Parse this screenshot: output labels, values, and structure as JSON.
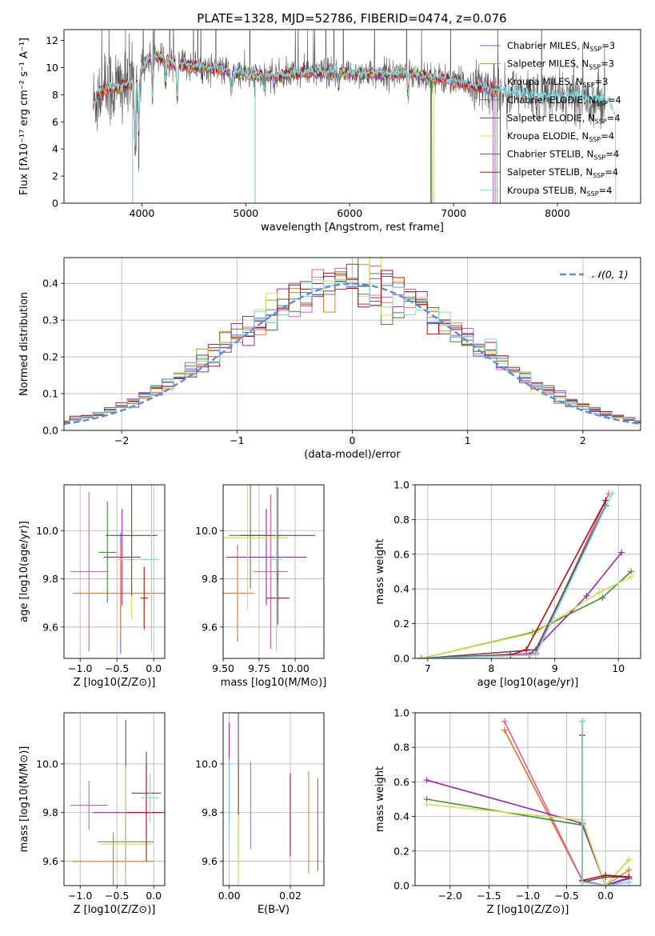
{
  "figure": {
    "title": "PLATE=1328, MJD=52786, FIBERID=0474, z=0.076"
  },
  "colors": {
    "Chabrier MILES": "#4c72d0",
    "Salpeter MILES": "#e8822a",
    "Kroupa MILES": "#e45a9e",
    "Chabrier ELODIE": "#4a8a3a",
    "Salpeter ELODIE": "#9b2aa8",
    "Kroupa ELODIE": "#cfe05a",
    "Chabrier STELIB": "#555555",
    "Salpeter STELIB": "#b01010",
    "Kroupa STELIB": "#7fd8e0",
    "normal": "#5b8fd6"
  },
  "chart_data": [
    {
      "id": "spectrum",
      "type": "line",
      "xlabel": "wavelength [Angstrom, rest frame]",
      "ylabel": "Flux [fλ10⁻¹⁷ erg cm⁻² s⁻¹ A⁻¹]",
      "xlim": [
        3250,
        8800
      ],
      "ylim": [
        0,
        12.8
      ],
      "xticks": [
        4000,
        5000,
        6000,
        7000,
        8000
      ],
      "yticks": [
        0,
        2,
        4,
        6,
        8,
        10,
        12
      ],
      "grid": false,
      "legend_position": "top-right",
      "series_order": [
        "Chabrier MILES",
        "Salpeter MILES",
        "Kroupa MILES",
        "Chabrier ELODIE",
        "Salpeter ELODIE",
        "Kroupa ELODIE",
        "Chabrier STELIB",
        "Salpeter STELIB",
        "Kroupa STELIB"
      ],
      "legend": [
        {
          "name": "Chabrier MILES",
          "label": "Chabrier MILES, N",
          "sub": "SSP",
          "suffix": "=3"
        },
        {
          "name": "Salpeter MILES",
          "label": "Salpeter MILES, N",
          "sub": "SSP",
          "suffix": "=3"
        },
        {
          "name": "Kroupa MILES",
          "label": "Kroupa MILES, N",
          "sub": "SSP",
          "suffix": "=3"
        },
        {
          "name": "Chabrier ELODIE",
          "label": "Chabrier ELODIE, N",
          "sub": "SSP",
          "suffix": "=4"
        },
        {
          "name": "Salpeter ELODIE",
          "label": "Salpeter ELODIE, N",
          "sub": "SSP",
          "suffix": "=4"
        },
        {
          "name": "Kroupa ELODIE",
          "label": "Kroupa ELODIE, N",
          "sub": "SSP",
          "suffix": "=4"
        },
        {
          "name": "Chabrier STELIB",
          "label": "Chabrier STELIB, N",
          "sub": "SSP",
          "suffix": "=4"
        },
        {
          "name": "Salpeter STELIB",
          "label": "Salpeter STELIB, N",
          "sub": "SSP",
          "suffix": "=4"
        },
        {
          "name": "Kroupa STELIB",
          "label": "Kroupa STELIB, N",
          "sub": "SSP",
          "suffix": "=4"
        }
      ],
      "continuum": [
        [
          3530,
          7.3
        ],
        [
          3600,
          8.3
        ],
        [
          3700,
          8.5
        ],
        [
          3800,
          8.6
        ],
        [
          3900,
          8.8
        ],
        [
          3960,
          9.3
        ],
        [
          4050,
          10.6
        ],
        [
          4150,
          10.9
        ],
        [
          4300,
          10.3
        ],
        [
          4500,
          10.1
        ],
        [
          4700,
          9.9
        ],
        [
          4900,
          9.6
        ],
        [
          5100,
          9.4
        ],
        [
          5300,
          9.4
        ],
        [
          5500,
          9.6
        ],
        [
          5800,
          9.6
        ],
        [
          6100,
          9.6
        ],
        [
          6300,
          9.5
        ],
        [
          6560,
          9.6
        ],
        [
          6800,
          9.3
        ],
        [
          7000,
          9.0
        ],
        [
          7300,
          8.5
        ],
        [
          7600,
          8.1
        ],
        [
          7900,
          7.9
        ],
        [
          8200,
          7.8
        ],
        [
          8500,
          7.5
        ],
        [
          8550,
          6.3
        ]
      ],
      "noisy_series": [
        "Chabrier STELIB"
      ],
      "observed_range": [
        3530,
        8460
      ],
      "plotted_ranges": {
        "Chabrier MILES": [
          3530,
          7400
        ],
        "Salpeter MILES": [
          3530,
          7420
        ],
        "Kroupa MILES": [
          3530,
          7380
        ],
        "Chabrier ELODIE": [
          3560,
          6780
        ],
        "Salpeter ELODIE": [
          3560,
          6790
        ],
        "Kroupa ELODIE": [
          3560,
          6810
        ],
        "Salpeter STELIB": [
          3530,
          7450
        ],
        "Kroupa STELIB": [
          3530,
          8560
        ]
      },
      "absorption_lines": [
        [
          3934,
          4.0
        ],
        [
          3969,
          5.0
        ],
        [
          4102,
          7.8
        ],
        [
          4227,
          8.6
        ],
        [
          4340,
          7.6
        ],
        [
          4861,
          8.0
        ],
        [
          5175,
          8.4
        ],
        [
          5270,
          8.8
        ],
        [
          5892,
          8.5
        ],
        [
          6563,
          8.0
        ],
        [
          7000,
          8.6
        ],
        [
          7150,
          8.7
        ]
      ],
      "drop_features": [
        {
          "x": 5090,
          "y": 0
        },
        {
          "x": 3910,
          "y": 0
        }
      ]
    },
    {
      "id": "residuals",
      "type": "line",
      "xlabel": "(data-model)/error",
      "ylabel": "Normed distribution",
      "xlim": [
        -2.5,
        2.5
      ],
      "ylim": [
        0,
        0.47
      ],
      "xticks": [
        -2,
        -1,
        0,
        1,
        2
      ],
      "yticks": [
        0.0,
        0.1,
        0.2,
        0.3,
        0.4
      ],
      "grid": true,
      "legend": [
        {
          "label": "𝒩(0, 1)",
          "style": "dashed"
        }
      ],
      "legend_position": "top-right",
      "bin_width": 0.1,
      "normal_curve": {
        "mean": 0,
        "std": 1
      },
      "histogram_series": [
        "Chabrier MILES",
        "Salpeter MILES",
        "Kroupa MILES",
        "Chabrier ELODIE",
        "Salpeter ELODIE",
        "Kroupa ELODIE",
        "Chabrier STELIB",
        "Salpeter STELIB",
        "Kroupa STELIB"
      ]
    },
    {
      "id": "age_vs_Z",
      "type": "scatter",
      "xlabel": "Z [log10(Z/Z⊙)]",
      "ylabel": "age [log10(age/yr)]",
      "xlim": [
        -1.22,
        0.15
      ],
      "ylim": [
        9.47,
        10.19
      ],
      "xticks": [
        -1.0,
        -0.5,
        0.0
      ],
      "yticks": [
        9.6,
        9.8,
        10.0
      ],
      "grid": true,
      "points": [
        {
          "series": "Chabrier MILES",
          "x": -0.45,
          "xerr": 0.65,
          "y": 9.74,
          "yerr": 0.0
        },
        {
          "series": "Salpeter MILES",
          "x": -0.45,
          "xerr": 0.65,
          "y": 9.74,
          "yerr": 0.0
        },
        {
          "series": "Kroupa MILES",
          "x": -0.88,
          "xerr": 0.25,
          "y": 9.83,
          "yerr": 0.33
        },
        {
          "series": "Chabrier ELODIE",
          "x": -0.63,
          "xerr": 0.0,
          "y": 9.91,
          "yerr": 0.21
        },
        {
          "series": "Salpeter ELODIE",
          "x": -0.43,
          "xerr": 0.0,
          "y": 9.89,
          "yerr": 0.0
        },
        {
          "series": "Kroupa ELODIE",
          "x": -0.3,
          "xerr": 0.0,
          "y": 9.88,
          "yerr": 0.0
        },
        {
          "series": "Chabrier STELIB",
          "x": -0.3,
          "xerr": 0.35,
          "y": 9.98,
          "yerr": 0.0
        },
        {
          "series": "Salpeter STELIB",
          "x": -0.13,
          "xerr": 0.0,
          "y": 9.72,
          "yerr": 0.0
        },
        {
          "series": "Kroupa STELIB",
          "x": -0.03,
          "xerr": 0.0,
          "y": 9.88,
          "yerr": 0.0
        }
      ]
    },
    {
      "id": "age_vs_mass",
      "type": "scatter",
      "xlabel": "mass [log10(M/M⊙)]",
      "ylabel": "",
      "xlim": [
        9.5,
        10.2
      ],
      "ylim": [
        9.47,
        10.19
      ],
      "xticks": [
        9.5,
        9.75,
        10.0
      ],
      "yticks": [
        9.6,
        9.8,
        10.0
      ],
      "grid": true,
      "points": [
        {
          "series": "Chabrier MILES",
          "x": 9.6,
          "y": 9.74
        },
        {
          "series": "Salpeter MILES",
          "x": 9.6,
          "y": 9.74
        },
        {
          "series": "Kroupa MILES",
          "x": 9.83,
          "y": 9.83
        },
        {
          "series": "Chabrier ELODIE",
          "x": 9.69,
          "y": 9.98
        },
        {
          "series": "Salpeter ELODIE",
          "x": 9.8,
          "y": 9.89
        },
        {
          "series": "Kroupa ELODIE",
          "x": 9.67,
          "y": 9.97
        },
        {
          "series": "Chabrier STELIB",
          "x": 9.88,
          "y": 9.98
        },
        {
          "series": "Salpeter STELIB",
          "x": 9.88,
          "y": 9.72
        },
        {
          "series": "Kroupa STELIB",
          "x": 9.87,
          "y": 9.88
        }
      ]
    },
    {
      "id": "mass_weight_vs_age",
      "type": "line",
      "xlabel": "age [log10(age/yr)]",
      "ylabel": "mass weight",
      "xlim": [
        6.8,
        10.35
      ],
      "ylim": [
        0,
        1.0
      ],
      "xticks": [
        7,
        8,
        9,
        10
      ],
      "yticks": [
        0.0,
        0.2,
        0.4,
        0.6,
        0.8,
        1.0
      ],
      "grid": true,
      "series": [
        {
          "name": "Chabrier MILES",
          "x": [
            6.9,
            8.7,
            9.8
          ],
          "y": [
            0.0,
            0.03,
            0.88
          ]
        },
        {
          "name": "Salpeter MILES",
          "x": [
            6.9,
            8.7,
            9.8
          ],
          "y": [
            0.0,
            0.03,
            0.91
          ]
        },
        {
          "name": "Kroupa MILES",
          "x": [
            6.9,
            8.7,
            9.85
          ],
          "y": [
            0.0,
            0.03,
            0.95
          ]
        },
        {
          "name": "Chabrier ELODIE",
          "x": [
            6.9,
            8.65,
            9.75,
            10.2
          ],
          "y": [
            0.0,
            0.15,
            0.35,
            0.5
          ]
        },
        {
          "name": "Salpeter ELODIE",
          "x": [
            6.9,
            8.6,
            9.5,
            10.05
          ],
          "y": [
            0.0,
            0.02,
            0.36,
            0.61
          ]
        },
        {
          "name": "Kroupa ELODIE",
          "x": [
            6.9,
            8.7,
            9.7,
            10.2
          ],
          "y": [
            0.0,
            0.15,
            0.38,
            0.47
          ]
        },
        {
          "name": "Chabrier STELIB",
          "x": [
            6.9,
            8.7,
            9.8
          ],
          "y": [
            0.0,
            0.05,
            0.88
          ]
        },
        {
          "name": "Salpeter STELIB",
          "x": [
            6.9,
            8.3,
            8.55,
            9.8
          ],
          "y": [
            0.0,
            0.02,
            0.05,
            0.91
          ]
        },
        {
          "name": "Kroupa STELIB",
          "x": [
            6.9,
            8.7,
            9.9
          ],
          "y": [
            0.0,
            0.02,
            0.95
          ]
        }
      ]
    },
    {
      "id": "mass_vs_Z",
      "type": "scatter",
      "xlabel": "Z [log10(Z/Z⊙)]",
      "ylabel": "mass [log10(M/M⊙)]",
      "xlim": [
        -1.22,
        0.15
      ],
      "ylim": [
        9.5,
        10.21
      ],
      "xticks": [
        -1.0,
        -0.5,
        0.0
      ],
      "yticks": [
        9.6,
        9.8,
        10.0
      ],
      "grid": true,
      "points": [
        {
          "series": "Chabrier MILES",
          "x": -0.55,
          "xerr": 0.55,
          "y": 9.6,
          "yerr": 0.0
        },
        {
          "series": "Salpeter MILES",
          "x": -0.55,
          "xerr": 0.55,
          "y": 9.6,
          "yerr": 0.0
        },
        {
          "series": "Kroupa MILES",
          "x": -0.88,
          "xerr": 0.25,
          "y": 9.83,
          "yerr": 0.0
        },
        {
          "series": "Chabrier ELODIE",
          "x": -0.38,
          "xerr": 0.38,
          "y": 9.68,
          "yerr": 0.0
        },
        {
          "series": "Salpeter ELODIE",
          "x": -0.38,
          "xerr": 0.45,
          "y": 9.8,
          "yerr": 0.0
        },
        {
          "series": "Kroupa ELODIE",
          "x": -0.38,
          "xerr": 0.35,
          "y": 9.67,
          "yerr": 0.0
        },
        {
          "series": "Chabrier STELIB",
          "x": -0.1,
          "xerr": 0.0,
          "y": 9.88,
          "yerr": 0.0
        },
        {
          "series": "Salpeter STELIB",
          "x": -0.1,
          "xerr": 0.0,
          "y": 9.8,
          "yerr": 0.0
        },
        {
          "series": "Kroupa STELIB",
          "x": -0.05,
          "xerr": 0.0,
          "y": 9.86,
          "yerr": 0.0
        }
      ]
    },
    {
      "id": "mass_vs_ebv",
      "type": "scatter",
      "xlabel": "E(B-V)",
      "ylabel": "",
      "xlim": [
        -0.002,
        0.031
      ],
      "ylim": [
        9.5,
        10.21
      ],
      "xticks": [
        0.0,
        0.02
      ],
      "yticks": [
        9.6,
        9.8,
        10.0
      ],
      "grid": true,
      "points": [
        {
          "series": "Chabrier MILES",
          "x": 0.029,
          "y": 9.75
        },
        {
          "series": "Salpeter MILES",
          "x": 0.026,
          "y": 9.76
        },
        {
          "series": "Kroupa MILES",
          "x": 0.007,
          "y": 9.83
        },
        {
          "series": "Chabrier ELODIE",
          "x": 0.003,
          "y": 9.8
        },
        {
          "series": "Salpeter ELODIE",
          "x": 0.0,
          "y": 9.97
        },
        {
          "series": "Kroupa ELODIE",
          "x": 0.003,
          "y": 9.74
        },
        {
          "series": "Chabrier STELIB",
          "x": 0.003,
          "y": 10.01
        },
        {
          "series": "Salpeter STELIB",
          "x": 0.02,
          "y": 9.79
        },
        {
          "series": "Kroupa STELIB",
          "x": 0.0,
          "y": 9.85
        }
      ]
    },
    {
      "id": "mass_weight_vs_Z",
      "type": "line",
      "xlabel": "Z [log10(Z/Z⊙)]",
      "ylabel": "mass weight",
      "xlim": [
        -2.45,
        0.45
      ],
      "ylim": [
        0,
        1.0
      ],
      "xticks": [
        -2.0,
        -1.5,
        -1.0,
        -0.5,
        0.0
      ],
      "yticks": [
        0.0,
        0.2,
        0.4,
        0.6,
        0.8,
        1.0
      ],
      "grid": true,
      "series": [
        {
          "name": "Chabrier MILES",
          "x": [
            -1.3,
            -0.3,
            0.0,
            0.3
          ],
          "y": [
            0.9,
            0.03,
            0.0,
            0.05
          ]
        },
        {
          "name": "Salpeter MILES",
          "x": [
            -1.3,
            -0.3,
            0.0,
            0.3
          ],
          "y": [
            0.9,
            0.03,
            0.0,
            0.09
          ]
        },
        {
          "name": "Kroupa MILES",
          "x": [
            -1.3,
            -0.3,
            0.0,
            0.3
          ],
          "y": [
            0.95,
            0.03,
            0.0,
            0.02
          ]
        },
        {
          "name": "Chabrier ELODIE",
          "x": [
            -2.3,
            -0.3,
            0.0,
            0.3
          ],
          "y": [
            0.5,
            0.35,
            0.0,
            0.15
          ]
        },
        {
          "name": "Salpeter ELODIE",
          "x": [
            -2.3,
            -0.3,
            0.0,
            0.3
          ],
          "y": [
            0.61,
            0.36,
            0.0,
            0.04
          ]
        },
        {
          "name": "Kroupa ELODIE",
          "x": [
            -2.3,
            -0.3,
            0.0,
            0.3
          ],
          "y": [
            0.47,
            0.38,
            0.0,
            0.15
          ]
        },
        {
          "name": "Chabrier STELIB",
          "x": [
            -0.3,
            -0.3,
            0.0,
            0.3
          ],
          "y": [
            0.95,
            0.02,
            0.05,
            0.05
          ]
        },
        {
          "name": "Salpeter STELIB",
          "x": [
            -0.3,
            -0.3,
            0.0,
            0.3
          ],
          "y": [
            0.87,
            0.03,
            0.06,
            0.05
          ]
        },
        {
          "name": "Kroupa STELIB",
          "x": [
            -0.3,
            -0.3,
            0.0,
            0.3
          ],
          "y": [
            0.95,
            0.02,
            0.0,
            0.02
          ]
        }
      ]
    }
  ]
}
